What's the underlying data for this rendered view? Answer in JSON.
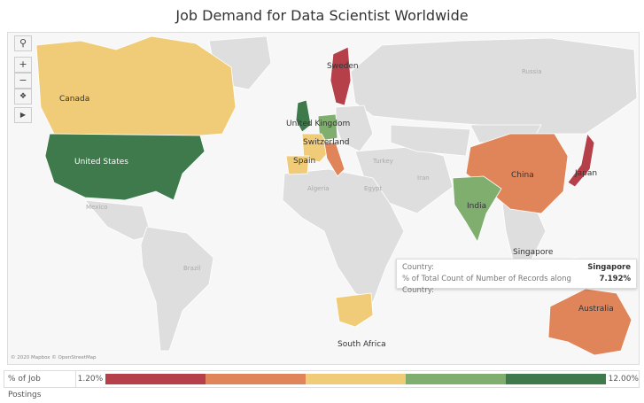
{
  "title": "Job Demand for Data Scientist Worldwide",
  "colors": {
    "red": "#b5404a",
    "orange": "#e0855a",
    "yellow": "#f0cc78",
    "light_green": "#7fae6f",
    "dark_green": "#3e7a4c",
    "land": "#dedede",
    "sea": "#f7f7f7"
  },
  "toolbar": {
    "search_icon": "magnifier-icon",
    "zoom_in": "+",
    "zoom_out": "−",
    "reset_icon": "pin-reset-icon",
    "expand_icon": "play-arrow-icon"
  },
  "countries": [
    {
      "name": "Canada",
      "band": "yellow"
    },
    {
      "name": "United States",
      "band": "dark_green"
    },
    {
      "name": "United Kingdom",
      "band": "dark_green"
    },
    {
      "name": "Sweden",
      "band": "red"
    },
    {
      "name": "Switzerland",
      "band": "yellow"
    },
    {
      "name": "Spain",
      "band": "yellow"
    },
    {
      "name": "China",
      "band": "orange"
    },
    {
      "name": "Japan",
      "band": "red"
    },
    {
      "name": "India",
      "band": "light_green"
    },
    {
      "name": "Singapore",
      "band": "light_green"
    },
    {
      "name": "Australia",
      "band": "orange"
    },
    {
      "name": "South Africa",
      "band": "yellow"
    }
  ],
  "background_labels": [
    "Russia",
    "Mexico",
    "Algeria",
    "Turkey",
    "Iran",
    "Egypt",
    "Brazil"
  ],
  "tooltip": {
    "label1": "Country:",
    "value1": "Singapore",
    "label2": "% of Total Count of Number of Records along Country:",
    "value2": "7.192%"
  },
  "attribution": "© 2020 Mapbox © OpenStreetMap",
  "legend": {
    "title": "% of Job Postings",
    "min": "1.20%",
    "max": "12.00%"
  }
}
